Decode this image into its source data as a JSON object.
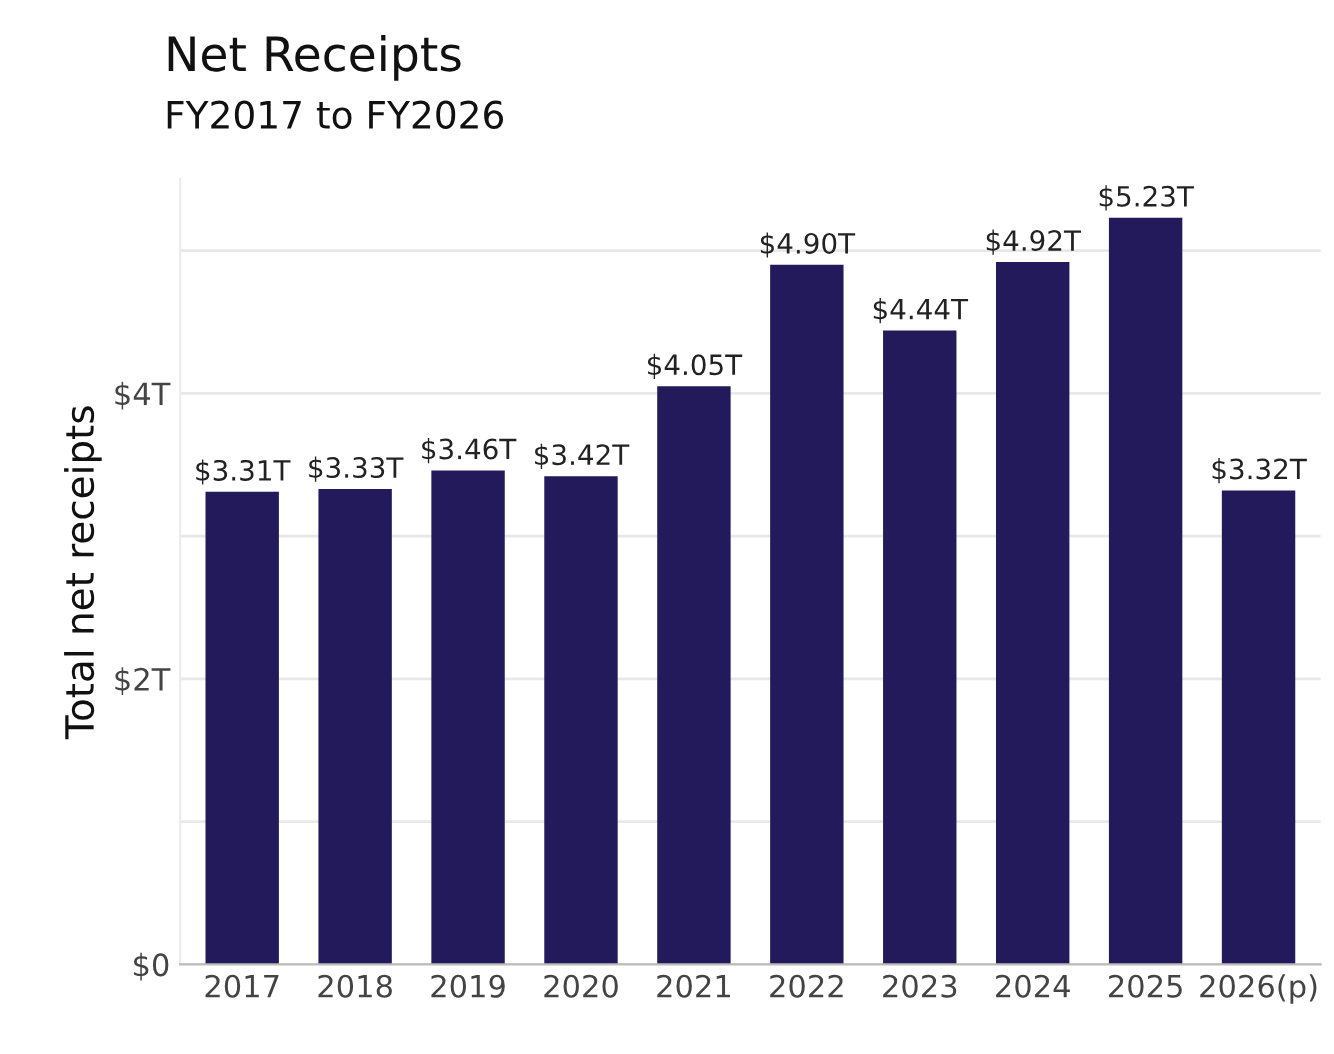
{
  "chart_data": {
    "type": "bar",
    "title": "Net Receipts",
    "subtitle": "FY2017 to FY2026",
    "ylabel": "Total net receipts",
    "categories": [
      "2017",
      "2018",
      "2019",
      "2020",
      "2021",
      "2022",
      "2023",
      "2024",
      "2025",
      "2026(p)"
    ],
    "values": [
      3.31,
      3.33,
      3.46,
      3.42,
      4.05,
      4.9,
      4.44,
      4.92,
      5.23,
      3.32
    ],
    "value_labels": [
      "$3.31T",
      "$3.33T",
      "$3.46T",
      "$3.42T",
      "$4.05T",
      "$4.90T",
      "$4.44T",
      "$4.92T",
      "$5.23T",
      "$3.32T"
    ],
    "color": "#221a5a",
    "ylim": [
      0,
      5.5
    ],
    "yticks": [
      {
        "value": 0,
        "label": "$0"
      },
      {
        "value": 1,
        "label": null
      },
      {
        "value": 2,
        "label": "$2T"
      },
      {
        "value": 3,
        "label": null
      },
      {
        "value": 4,
        "label": "$4T"
      },
      {
        "value": 5,
        "label": null
      }
    ],
    "grid": "y"
  }
}
